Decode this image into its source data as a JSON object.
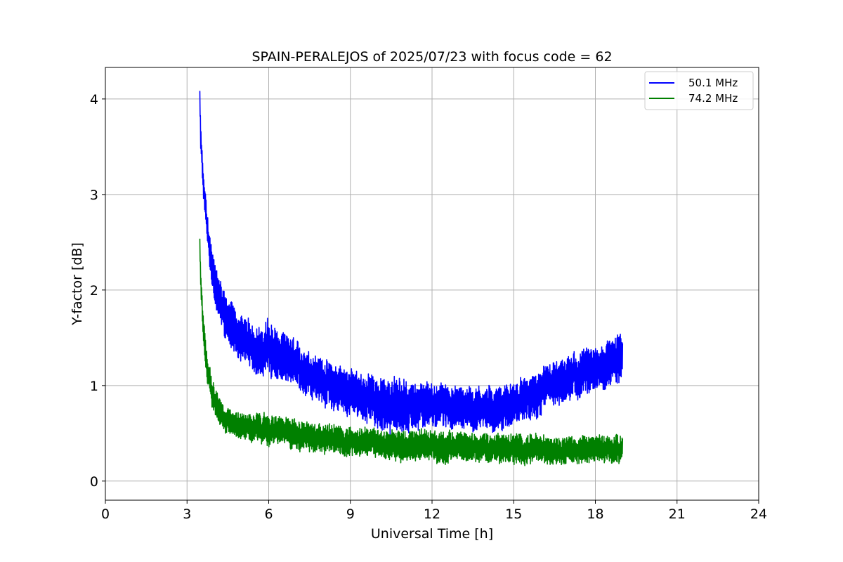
{
  "chart_data": {
    "type": "line",
    "title": "SPAIN-PERALEJOS of 2025/07/23 with focus code = 62",
    "xlabel": "Universal Time [h]",
    "ylabel": "Y-factor [dB]",
    "xlim": [
      0,
      24
    ],
    "ylim": [
      -0.2,
      4.33
    ],
    "xticks": [
      0,
      3,
      6,
      9,
      12,
      15,
      18,
      21,
      24
    ],
    "yticks": [
      0,
      1,
      2,
      3,
      4
    ],
    "grid": true,
    "legend_position": "top-right",
    "series": [
      {
        "name": "50.1 MHz",
        "color": "#0000ff",
        "x": [
          3.47,
          3.5,
          3.6,
          3.75,
          3.9,
          4.1,
          4.4,
          4.8,
          5.3,
          5.8,
          6.0,
          6.3,
          6.8,
          7.3,
          7.8,
          8.3,
          8.8,
          9.3,
          9.8,
          10.3,
          10.6,
          11.0,
          11.5,
          12.0,
          12.5,
          13.0,
          13.5,
          14.0,
          14.5,
          15.0,
          15.5,
          16.0,
          16.5,
          17.0,
          17.5,
          18.0,
          18.5,
          19.0
        ],
        "mean": [
          4.05,
          3.6,
          3.1,
          2.6,
          2.25,
          2.0,
          1.75,
          1.55,
          1.42,
          1.35,
          1.4,
          1.32,
          1.24,
          1.15,
          1.07,
          1.0,
          0.95,
          0.9,
          0.85,
          0.78,
          0.75,
          0.77,
          0.79,
          0.8,
          0.79,
          0.77,
          0.76,
          0.76,
          0.77,
          0.8,
          0.85,
          0.93,
          1.0,
          1.06,
          1.12,
          1.17,
          1.23,
          1.3
        ],
        "amp": [
          0.06,
          0.12,
          0.15,
          0.17,
          0.2,
          0.22,
          0.24,
          0.24,
          0.24,
          0.26,
          0.3,
          0.27,
          0.25,
          0.24,
          0.24,
          0.24,
          0.24,
          0.24,
          0.25,
          0.28,
          0.3,
          0.28,
          0.24,
          0.22,
          0.22,
          0.22,
          0.22,
          0.22,
          0.22,
          0.22,
          0.22,
          0.23,
          0.23,
          0.23,
          0.23,
          0.23,
          0.25,
          0.27
        ]
      },
      {
        "name": "74.2 MHz",
        "color": "#008000",
        "x": [
          3.47,
          3.5,
          3.6,
          3.75,
          3.9,
          4.1,
          4.4,
          4.8,
          5.3,
          5.8,
          6.3,
          6.8,
          7.3,
          7.8,
          8.3,
          8.8,
          9.3,
          9.8,
          10.3,
          10.8,
          11.3,
          11.8,
          12.3,
          12.8,
          13.3,
          13.8,
          14.3,
          14.8,
          15.3,
          15.8,
          16.3,
          16.8,
          17.3,
          17.8,
          18.3,
          18.8,
          19.0
        ],
        "mean": [
          2.5,
          2.1,
          1.6,
          1.2,
          0.95,
          0.78,
          0.66,
          0.6,
          0.56,
          0.54,
          0.52,
          0.5,
          0.48,
          0.46,
          0.44,
          0.42,
          0.41,
          0.4,
          0.39,
          0.38,
          0.37,
          0.37,
          0.36,
          0.36,
          0.35,
          0.35,
          0.35,
          0.34,
          0.33,
          0.33,
          0.33,
          0.33,
          0.33,
          0.33,
          0.33,
          0.34,
          0.35
        ],
        "amp": [
          0.05,
          0.1,
          0.14,
          0.15,
          0.15,
          0.14,
          0.13,
          0.13,
          0.14,
          0.15,
          0.15,
          0.15,
          0.15,
          0.15,
          0.15,
          0.15,
          0.15,
          0.15,
          0.16,
          0.16,
          0.16,
          0.16,
          0.16,
          0.15,
          0.15,
          0.15,
          0.15,
          0.15,
          0.16,
          0.15,
          0.14,
          0.14,
          0.14,
          0.14,
          0.14,
          0.14,
          0.14
        ]
      }
    ]
  }
}
